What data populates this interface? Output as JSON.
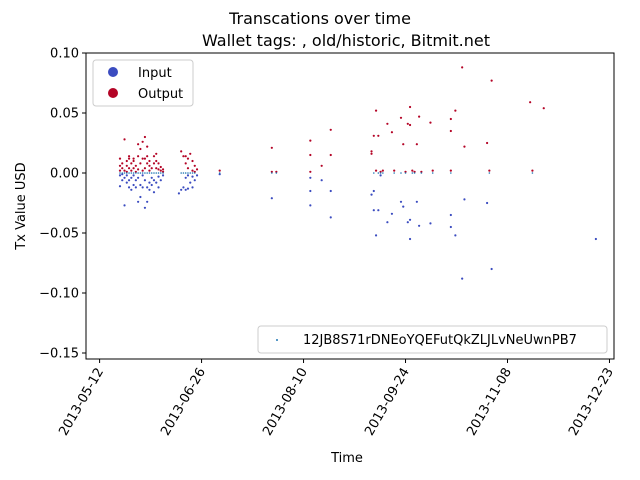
{
  "chart_data": {
    "type": "scatter",
    "title": "Transcations over time",
    "subtitle": "Wallet tags: , old/historic, Bitmit.net",
    "xlabel": "Time",
    "ylabel": "Tx Value USD",
    "xlim": [
      "2013-05-06",
      "2013-12-25"
    ],
    "ylim": [
      -0.155,
      0.1
    ],
    "x_ticks": [
      "2013-05-12",
      "2013-06-26",
      "2013-08-10",
      "2013-09-24",
      "2013-11-08",
      "2013-12-23"
    ],
    "y_ticks": [
      0.1,
      0.05,
      0.0,
      -0.05,
      -0.1,
      -0.15
    ],
    "y_tick_labels": [
      "0.10",
      "0.05",
      "0.00",
      "−0.05",
      "−0.10",
      "−0.15"
    ],
    "grid": false,
    "legend_top": {
      "placement": "top-left",
      "entries": [
        {
          "label": "Input",
          "color": "#3b4cc0"
        },
        {
          "label": "Output",
          "color": "#b40426"
        }
      ]
    },
    "legend_bottom": {
      "placement": "bottom-right",
      "entries": [
        {
          "label": "12JB8S71rDNEoYQEFutQkZLJLvNeUwnPB7",
          "color": "#1f77b4"
        }
      ]
    },
    "series": [
      {
        "name": "Output",
        "color": "#b40426",
        "points": [
          [
            "2013-05-21",
            0.012
          ],
          [
            "2013-05-21",
            0.006
          ],
          [
            "2013-05-21",
            0.002
          ],
          [
            "2013-05-22",
            0.004
          ],
          [
            "2013-05-22",
            0.008
          ],
          [
            "2013-05-23",
            0.028
          ],
          [
            "2013-05-23",
            0.002
          ],
          [
            "2013-05-24",
            0.006
          ],
          [
            "2013-05-24",
            0.01
          ],
          [
            "2013-05-24",
            0.001
          ],
          [
            "2013-05-25",
            0.014
          ],
          [
            "2013-05-25",
            0.004
          ],
          [
            "2013-05-25",
            0.012
          ],
          [
            "2013-05-26",
            0.008
          ],
          [
            "2013-05-26",
            0.002
          ],
          [
            "2013-05-27",
            0.012
          ],
          [
            "2013-05-27",
            0.01
          ],
          [
            "2013-05-27",
            0.004
          ],
          [
            "2013-05-28",
            0.006
          ],
          [
            "2013-05-28",
            0.001
          ],
          [
            "2013-05-29",
            0.024
          ],
          [
            "2013-05-29",
            0.014
          ],
          [
            "2013-05-29",
            0.003
          ],
          [
            "2013-05-30",
            0.02
          ],
          [
            "2013-05-30",
            0.008
          ],
          [
            "2013-05-31",
            0.012
          ],
          [
            "2013-05-31",
            0.026
          ],
          [
            "2013-05-31",
            0.002
          ],
          [
            "2013-06-01",
            0.03
          ],
          [
            "2013-06-01",
            0.012
          ],
          [
            "2013-06-01",
            0.004
          ],
          [
            "2013-06-02",
            0.022
          ],
          [
            "2013-06-02",
            0.008
          ],
          [
            "2013-06-02",
            0.014
          ],
          [
            "2013-06-03",
            0.006
          ],
          [
            "2013-06-03",
            0.01
          ],
          [
            "2013-06-03",
            0.002
          ],
          [
            "2013-06-04",
            0.004
          ],
          [
            "2013-06-05",
            0.014
          ],
          [
            "2013-06-05",
            0.008
          ],
          [
            "2013-06-06",
            0.016
          ],
          [
            "2013-06-06",
            0.004
          ],
          [
            "2013-06-06",
            0.01
          ],
          [
            "2013-06-07",
            0.003
          ],
          [
            "2013-06-07",
            0.008
          ],
          [
            "2013-06-08",
            0.005
          ],
          [
            "2013-06-08",
            0.002
          ],
          [
            "2013-06-09",
            0.003
          ],
          [
            "2013-06-09",
            0.001
          ],
          [
            "2013-06-17",
            0.018
          ],
          [
            "2013-06-18",
            0.014
          ],
          [
            "2013-06-19",
            0.008
          ],
          [
            "2013-06-19",
            0.014
          ],
          [
            "2013-06-20",
            0.012
          ],
          [
            "2013-06-20",
            0.004
          ],
          [
            "2013-06-21",
            0.016
          ],
          [
            "2013-06-22",
            0.01
          ],
          [
            "2013-06-22",
            0.002
          ],
          [
            "2013-06-23",
            0.006
          ],
          [
            "2013-06-23",
            0.001
          ],
          [
            "2013-06-24",
            0.003
          ],
          [
            "2013-07-04",
            0.002
          ],
          [
            "2013-07-27",
            0.021
          ],
          [
            "2013-07-27",
            0.001
          ],
          [
            "2013-07-29",
            0.001
          ],
          [
            "2013-08-13",
            0.027
          ],
          [
            "2013-08-13",
            0.015
          ],
          [
            "2013-08-13",
            0.001
          ],
          [
            "2013-08-18",
            0.006
          ],
          [
            "2013-08-22",
            0.036
          ],
          [
            "2013-08-22",
            0.015
          ],
          [
            "2013-09-09",
            0.018
          ],
          [
            "2013-09-09",
            0.016
          ],
          [
            "2013-09-10",
            0.031
          ],
          [
            "2013-09-11",
            0.052
          ],
          [
            "2013-09-11",
            0.002
          ],
          [
            "2013-09-12",
            0.031
          ],
          [
            "2013-09-13",
            0.001
          ],
          [
            "2013-09-14",
            0.002
          ],
          [
            "2013-09-16",
            0.041
          ],
          [
            "2013-09-18",
            0.034
          ],
          [
            "2013-09-19",
            0.002
          ],
          [
            "2013-09-22",
            0.046
          ],
          [
            "2013-09-23",
            0.024
          ],
          [
            "2013-09-24",
            0.001
          ],
          [
            "2013-09-25",
            0.041
          ],
          [
            "2013-09-26",
            0.055
          ],
          [
            "2013-09-26",
            0.04
          ],
          [
            "2013-09-27",
            0.002
          ],
          [
            "2013-09-28",
            0.001
          ],
          [
            "2013-09-29",
            0.024
          ],
          [
            "2013-09-30",
            0.047
          ],
          [
            "2013-10-01",
            0.001
          ],
          [
            "2013-10-05",
            0.042
          ],
          [
            "2013-10-06",
            0.002
          ],
          [
            "2013-10-14",
            0.045
          ],
          [
            "2013-10-14",
            0.035
          ],
          [
            "2013-10-14",
            0.002
          ],
          [
            "2013-10-16",
            0.052
          ],
          [
            "2013-10-19",
            0.088
          ],
          [
            "2013-10-20",
            0.022
          ],
          [
            "2013-10-30",
            0.025
          ],
          [
            "2013-10-31",
            0.002
          ],
          [
            "2013-11-01",
            0.077
          ],
          [
            "2013-11-18",
            0.059
          ],
          [
            "2013-11-19",
            0.002
          ],
          [
            "2013-11-24",
            0.054
          ]
        ]
      },
      {
        "name": "Input",
        "color": "#3b4cc0",
        "points": [
          [
            "2013-05-21",
            -0.002
          ],
          [
            "2013-05-21",
            -0.011
          ],
          [
            "2013-05-22",
            -0.006
          ],
          [
            "2013-05-22",
            -0.001
          ],
          [
            "2013-05-23",
            -0.027
          ],
          [
            "2013-05-23",
            -0.004
          ],
          [
            "2013-05-24",
            -0.008
          ],
          [
            "2013-05-24",
            -0.002
          ],
          [
            "2013-05-25",
            -0.006
          ],
          [
            "2013-05-25",
            -0.012
          ],
          [
            "2013-05-26",
            -0.004
          ],
          [
            "2013-05-26",
            -0.014
          ],
          [
            "2013-05-27",
            -0.01
          ],
          [
            "2013-05-27",
            -0.002
          ],
          [
            "2013-05-28",
            -0.006
          ],
          [
            "2013-05-28",
            -0.012
          ],
          [
            "2013-05-29",
            -0.024
          ],
          [
            "2013-05-29",
            -0.004
          ],
          [
            "2013-05-30",
            -0.02
          ],
          [
            "2013-05-30",
            -0.01
          ],
          [
            "2013-05-31",
            -0.012
          ],
          [
            "2013-05-31",
            -0.002
          ],
          [
            "2013-06-01",
            -0.029
          ],
          [
            "2013-06-01",
            -0.006
          ],
          [
            "2013-06-02",
            -0.024
          ],
          [
            "2013-06-02",
            -0.012
          ],
          [
            "2013-06-03",
            -0.008
          ],
          [
            "2013-06-03",
            -0.014
          ],
          [
            "2013-06-04",
            -0.004
          ],
          [
            "2013-06-04",
            -0.01
          ],
          [
            "2013-06-05",
            -0.016
          ],
          [
            "2013-06-05",
            -0.006
          ],
          [
            "2013-06-06",
            -0.008
          ],
          [
            "2013-06-07",
            -0.012
          ],
          [
            "2013-06-07",
            -0.003
          ],
          [
            "2013-06-08",
            -0.006
          ],
          [
            "2013-06-09",
            -0.002
          ],
          [
            "2013-06-16",
            -0.017
          ],
          [
            "2013-06-17",
            -0.014
          ],
          [
            "2013-06-18",
            -0.012
          ],
          [
            "2013-06-19",
            -0.014
          ],
          [
            "2013-06-19",
            -0.004
          ],
          [
            "2013-06-20",
            -0.013
          ],
          [
            "2013-06-20",
            -0.002
          ],
          [
            "2013-06-21",
            -0.008
          ],
          [
            "2013-06-22",
            -0.012
          ],
          [
            "2013-06-22",
            -0.003
          ],
          [
            "2013-06-23",
            -0.006
          ],
          [
            "2013-06-24",
            -0.002
          ],
          [
            "2013-07-04",
            -0.001
          ],
          [
            "2013-07-27",
            -0.021
          ],
          [
            "2013-08-13",
            -0.027
          ],
          [
            "2013-08-13",
            -0.015
          ],
          [
            "2013-08-13",
            -0.004
          ],
          [
            "2013-08-18",
            -0.006
          ],
          [
            "2013-08-22",
            -0.037
          ],
          [
            "2013-08-22",
            -0.015
          ],
          [
            "2013-09-09",
            -0.018
          ],
          [
            "2013-09-10",
            -0.015
          ],
          [
            "2013-09-10",
            -0.031
          ],
          [
            "2013-09-11",
            -0.052
          ],
          [
            "2013-09-12",
            -0.031
          ],
          [
            "2013-09-13",
            -0.002
          ],
          [
            "2013-09-16",
            -0.041
          ],
          [
            "2013-09-18",
            -0.034
          ],
          [
            "2013-09-22",
            -0.024
          ],
          [
            "2013-09-23",
            -0.028
          ],
          [
            "2013-09-25",
            -0.041
          ],
          [
            "2013-09-26",
            -0.055
          ],
          [
            "2013-09-26",
            -0.039
          ],
          [
            "2013-09-29",
            -0.024
          ],
          [
            "2013-09-30",
            -0.044
          ],
          [
            "2013-10-05",
            -0.042
          ],
          [
            "2013-10-14",
            -0.045
          ],
          [
            "2013-10-14",
            -0.035
          ],
          [
            "2013-10-16",
            -0.052
          ],
          [
            "2013-10-19",
            -0.088
          ],
          [
            "2013-10-20",
            -0.022
          ],
          [
            "2013-10-30",
            -0.025
          ],
          [
            "2013-11-01",
            -0.08
          ],
          [
            "2013-12-17",
            -0.055
          ]
        ]
      },
      {
        "name": "12JB8S71rDNEoYQEFutQkZLJLvNeUwnPB7",
        "color": "#1f77b4",
        "points": [
          [
            "2013-05-21",
            0.0
          ],
          [
            "2013-05-22",
            0.0
          ],
          [
            "2013-05-23",
            0.0
          ],
          [
            "2013-05-24",
            0.0
          ],
          [
            "2013-05-25",
            0.0
          ],
          [
            "2013-05-26",
            0.0
          ],
          [
            "2013-05-27",
            0.0
          ],
          [
            "2013-05-28",
            0.0
          ],
          [
            "2013-05-29",
            0.0
          ],
          [
            "2013-05-30",
            0.0
          ],
          [
            "2013-05-31",
            0.0
          ],
          [
            "2013-06-01",
            0.0
          ],
          [
            "2013-06-02",
            0.0
          ],
          [
            "2013-06-03",
            0.0
          ],
          [
            "2013-06-04",
            0.0
          ],
          [
            "2013-06-05",
            0.0
          ],
          [
            "2013-06-06",
            0.0
          ],
          [
            "2013-06-07",
            0.0
          ],
          [
            "2013-06-08",
            0.0
          ],
          [
            "2013-06-09",
            0.0
          ],
          [
            "2013-06-17",
            0.0
          ],
          [
            "2013-06-18",
            0.0
          ],
          [
            "2013-06-19",
            0.0
          ],
          [
            "2013-06-20",
            0.0
          ],
          [
            "2013-06-21",
            0.0
          ],
          [
            "2013-06-22",
            0.0
          ],
          [
            "2013-06-23",
            0.0
          ],
          [
            "2013-07-04",
            0.0
          ],
          [
            "2013-07-27",
            0.0
          ],
          [
            "2013-07-29",
            0.0
          ],
          [
            "2013-09-10",
            0.0
          ],
          [
            "2013-09-12",
            0.0
          ],
          [
            "2013-09-13",
            0.0
          ],
          [
            "2013-09-14",
            0.0
          ],
          [
            "2013-09-19",
            0.0
          ],
          [
            "2013-09-22",
            0.0
          ],
          [
            "2013-09-24",
            0.0
          ],
          [
            "2013-09-27",
            0.0
          ],
          [
            "2013-09-28",
            0.0
          ],
          [
            "2013-10-01",
            0.0
          ],
          [
            "2013-10-06",
            0.0
          ],
          [
            "2013-10-14",
            0.0
          ],
          [
            "2013-10-31",
            0.0
          ],
          [
            "2013-11-19",
            0.0
          ]
        ]
      }
    ]
  }
}
